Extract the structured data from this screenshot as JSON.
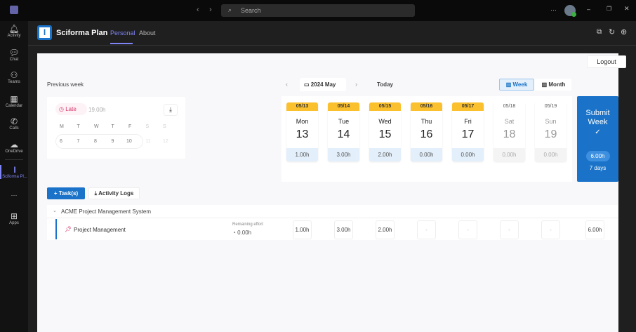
{
  "titlebar": {
    "search_placeholder": "Search",
    "more": "···"
  },
  "rail": [
    {
      "label": "Activity",
      "icon": "bell-icon"
    },
    {
      "label": "Chat",
      "icon": "chat-icon"
    },
    {
      "label": "Teams",
      "icon": "teams-icon"
    },
    {
      "label": "Calendar",
      "icon": "calendar-icon"
    },
    {
      "label": "Calls",
      "icon": "phone-icon"
    },
    {
      "label": "OneDrive",
      "icon": "cloud-icon"
    },
    {
      "label": "Sciforma Pl...",
      "icon": "sciforma-icon"
    },
    {
      "label": "···"
    },
    {
      "label": "Apps",
      "icon": "plus-box-icon"
    }
  ],
  "app": {
    "title": "Sciforma Plan",
    "logo_letter": "I",
    "tabs": [
      {
        "label": "Personal",
        "active": true
      },
      {
        "label": "About"
      }
    ]
  },
  "logout": "Logout",
  "previous_week": {
    "label": "Previous week",
    "status": "Late",
    "hours": "19.00h",
    "weekday_letters": [
      "M",
      "T",
      "W",
      "T",
      "F",
      "S",
      "S"
    ],
    "dates": [
      "6",
      "7",
      "8",
      "9",
      "10",
      "11",
      "12"
    ]
  },
  "nav": {
    "month": "2024 May",
    "today": "Today",
    "week": "Week",
    "month_view": "Month",
    "selected_view": "Week"
  },
  "days": [
    {
      "date": "05/13",
      "name": "Mon",
      "num": "13",
      "hours": "1.00h",
      "weekend": false
    },
    {
      "date": "05/14",
      "name": "Tue",
      "num": "14",
      "hours": "3.00h",
      "weekend": false
    },
    {
      "date": "05/15",
      "name": "Wed",
      "num": "15",
      "hours": "2.00h",
      "weekend": false
    },
    {
      "date": "05/16",
      "name": "Thu",
      "num": "16",
      "hours": "0.00h",
      "weekend": false
    },
    {
      "date": "05/17",
      "name": "Fri",
      "num": "17",
      "hours": "0.00h",
      "weekend": false
    },
    {
      "date": "05/18",
      "name": "Sat",
      "num": "18",
      "hours": "0.00h",
      "weekend": true
    },
    {
      "date": "05/19",
      "name": "Sun",
      "num": "19",
      "hours": "0.00h",
      "weekend": true
    }
  ],
  "submit": {
    "line1": "Submit",
    "line2": "Week",
    "check": "✓",
    "total": "6.00h",
    "days": "7 days"
  },
  "actions": {
    "add_task": "Task(s)",
    "activity_logs": "Activity Logs"
  },
  "project": {
    "name": "ACME Project Management System",
    "task": {
      "name": "Project Management",
      "remaining_label": "Remaining effort",
      "remaining": "0.00h",
      "cells": [
        "1.00h",
        "3.00h",
        "2.00h",
        "-",
        "-",
        "-",
        "-"
      ],
      "total": "6.00h"
    }
  },
  "colors": {
    "accent": "#1a73c8",
    "date_badge": "#fbc02d",
    "late": "#d6336c",
    "tab_active": "#7f85f5"
  }
}
